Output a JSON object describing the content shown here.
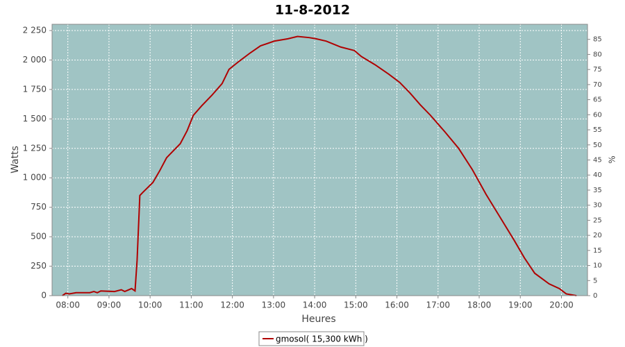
{
  "chart_data": {
    "type": "line",
    "title": "11-8-2012",
    "x_label": "Heures",
    "y_label": "Watts",
    "y2_label": "%",
    "x": [
      "07:52",
      "07:57",
      "08:02",
      "08:12",
      "08:32",
      "08:38",
      "08:43",
      "08:48",
      "09:08",
      "09:18",
      "09:23",
      "09:33",
      "09:38",
      "09:41",
      "09:45",
      "09:50",
      "10:04",
      "10:14",
      "10:24",
      "10:44",
      "10:54",
      "11:03",
      "11:15",
      "11:30",
      "11:45",
      "11:55",
      "12:10",
      "12:26",
      "12:41",
      "13:01",
      "13:21",
      "13:35",
      "13:52",
      "14:02",
      "14:17",
      "14:38",
      "14:58",
      "15:08",
      "15:28",
      "15:48",
      "16:04",
      "16:19",
      "16:34",
      "16:49",
      "17:10",
      "17:30",
      "17:50",
      "18:10",
      "18:30",
      "18:51",
      "19:06",
      "19:21",
      "19:42",
      "19:57",
      "20:07",
      "20:22"
    ],
    "series": [
      {
        "name": "gmosol( 15,300 kWh )",
        "color": "#b00000",
        "values": [
          0,
          20,
          15,
          25,
          25,
          35,
          25,
          40,
          35,
          50,
          35,
          60,
          40,
          300,
          850,
          880,
          960,
          1060,
          1170,
          1290,
          1400,
          1530,
          1610,
          1700,
          1800,
          1920,
          1990,
          2060,
          2120,
          2160,
          2180,
          2200,
          2190,
          2180,
          2160,
          2110,
          2080,
          2030,
          1960,
          1880,
          1810,
          1720,
          1620,
          1530,
          1390,
          1250,
          1070,
          860,
          670,
          470,
          320,
          190,
          100,
          60,
          15,
          0
        ]
      }
    ],
    "xlim": [
      "07:37",
      "20:38"
    ],
    "xticks": [
      "08:00",
      "09:00",
      "10:00",
      "11:00",
      "12:00",
      "13:00",
      "14:00",
      "15:00",
      "16:00",
      "17:00",
      "18:00",
      "19:00",
      "20:00"
    ],
    "ylim": [
      0,
      2303
    ],
    "yticks": [
      0,
      250,
      500,
      750,
      {
        "value": 1000,
        "label": "1 000"
      },
      {
        "value": 1250,
        "label": "1 250"
      },
      {
        "value": 1500,
        "label": "1 500"
      },
      {
        "value": 1750,
        "label": "1 750"
      },
      {
        "value": 2000,
        "label": "2 000"
      },
      {
        "value": 2250,
        "label": "2 250"
      }
    ],
    "y2lim": [
      0,
      90
    ],
    "y2ticks": [
      0,
      5,
      10,
      15,
      20,
      25,
      30,
      35,
      40,
      45,
      50,
      55,
      60,
      65,
      70,
      75,
      80,
      85
    ],
    "grid": true,
    "plot_background": "#a0c4c4",
    "legend": "bottom"
  }
}
